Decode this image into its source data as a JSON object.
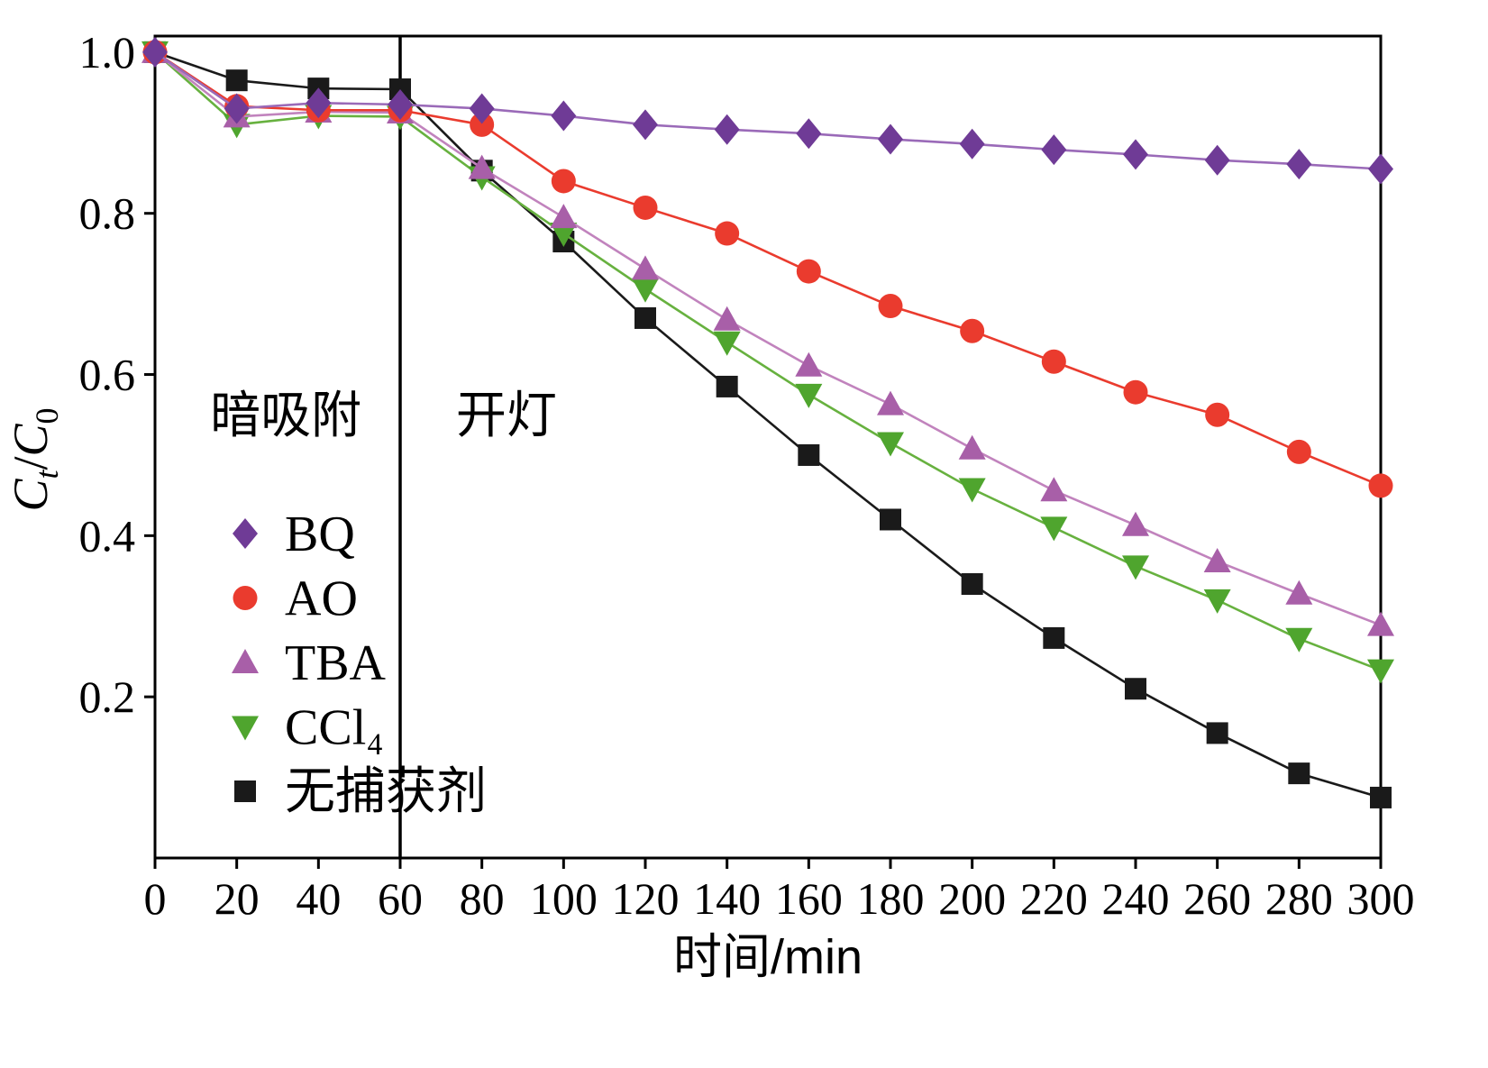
{
  "figure_title": "",
  "chart_data": {
    "type": "line",
    "xlabel": "时间/min",
    "ylabel_parts": [
      {
        "t": "C",
        "style": "italic"
      },
      {
        "t": "t",
        "style": "italic-sub"
      },
      {
        "t": "/",
        "style": "normal"
      },
      {
        "t": "C",
        "style": "italic"
      },
      {
        "t": "0",
        "style": "sub"
      }
    ],
    "xlim": [
      0,
      300
    ],
    "ylim": [
      0,
      1.02
    ],
    "xticks": [
      0,
      20,
      40,
      60,
      80,
      100,
      120,
      140,
      160,
      180,
      200,
      220,
      240,
      260,
      280,
      300
    ],
    "yticks": [
      0.2,
      0.4,
      0.6,
      0.8,
      1.0
    ],
    "grid": false,
    "legend_position": "lower-left",
    "divider_x": 60,
    "annotations": [
      {
        "text": "暗吸附",
        "x": 32,
        "y": 0.55
      },
      {
        "text": "开灯",
        "x": 86,
        "y": 0.55
      }
    ],
    "x": [
      0,
      20,
      40,
      60,
      80,
      100,
      120,
      140,
      160,
      180,
      200,
      220,
      240,
      260,
      280,
      300
    ],
    "series": [
      {
        "name": "BQ",
        "marker": "diamond",
        "color": "#6f3b96",
        "line_color": "#9a6ab8",
        "values": [
          1.0,
          0.93,
          0.937,
          0.935,
          0.93,
          0.921,
          0.91,
          0.904,
          0.899,
          0.892,
          0.886,
          0.879,
          0.873,
          0.866,
          0.861,
          0.855
        ]
      },
      {
        "name": "AO",
        "marker": "circle",
        "color": "#ea3b2e",
        "line_color": "#ea3b2e",
        "values": [
          1.0,
          0.933,
          0.928,
          0.928,
          0.91,
          0.84,
          0.807,
          0.775,
          0.728,
          0.685,
          0.654,
          0.616,
          0.578,
          0.55,
          0.504,
          0.462
        ]
      },
      {
        "name": "TBA",
        "marker": "triangle-up",
        "color": "#a85fa8",
        "line_color": "#c183bd",
        "values": [
          1.0,
          0.92,
          0.926,
          0.925,
          0.856,
          0.795,
          0.731,
          0.668,
          0.611,
          0.563,
          0.508,
          0.456,
          0.413,
          0.368,
          0.328,
          0.289
        ]
      },
      {
        "name": "CCl₄",
        "marker": "triangle-down",
        "color": "#4fa52e",
        "line_color": "#67b13f",
        "values": [
          1.0,
          0.91,
          0.921,
          0.92,
          0.845,
          0.775,
          0.706,
          0.64,
          0.575,
          0.515,
          0.458,
          0.41,
          0.362,
          0.32,
          0.272,
          0.233
        ]
      },
      {
        "name": "无捕获剂",
        "marker": "square",
        "color": "#1a1a1a",
        "line_color": "#1a1a1a",
        "values": [
          1.0,
          0.965,
          0.955,
          0.954,
          0.853,
          0.765,
          0.67,
          0.585,
          0.5,
          0.42,
          0.34,
          0.273,
          0.21,
          0.155,
          0.105,
          0.075
        ]
      }
    ]
  }
}
